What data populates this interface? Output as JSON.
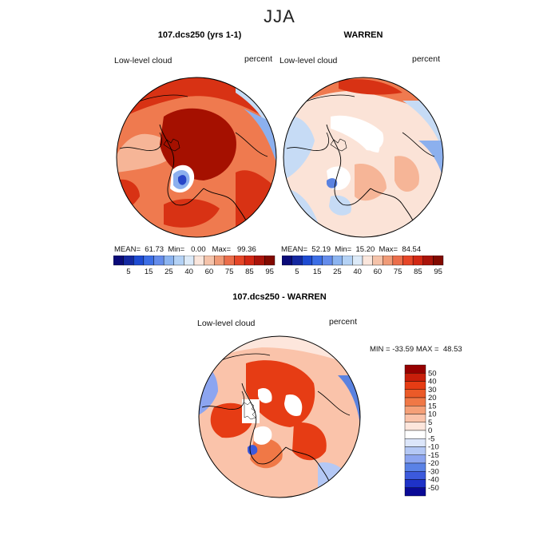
{
  "season": "JJA",
  "panels": {
    "model": {
      "title": "107.dcs250 (yrs 1-1)",
      "field": "Low-level cloud",
      "units": "percent",
      "stats": {
        "mean_label": "MEAN=",
        "mean": "61.73",
        "min_label": "Min=",
        "min": "0.00",
        "max_label": "Max=",
        "max": "99.36"
      }
    },
    "obs": {
      "title": "WARREN",
      "field": "Low-level cloud",
      "units": "percent",
      "stats": {
        "mean_label": "MEAN=",
        "mean": "52.19",
        "min_label": "Min=",
        "min": "15.20",
        "max_label": "Max=",
        "max": "84.54"
      }
    },
    "diff": {
      "title": "107.dcs250 - WARREN",
      "field": "Low-level cloud",
      "units": "percent",
      "stats": "MIN = -33.59 MAX =  48.53"
    }
  },
  "colorbars": {
    "absolute": {
      "tick_labels": [
        "5",
        "15",
        "25",
        "40",
        "60",
        "75",
        "85",
        "95"
      ],
      "colors": [
        "#0a0a78",
        "#1428a0",
        "#1e4bd2",
        "#3c6ee6",
        "#648ceb",
        "#8cb4f0",
        "#b4d2f5",
        "#dceaf8",
        "#fae6dc",
        "#f5c3aa",
        "#f09b78",
        "#eb6e4b",
        "#e64628",
        "#d22814",
        "#aa140a",
        "#820a00"
      ]
    },
    "difference": {
      "tick_labels": [
        "50",
        "40",
        "30",
        "20",
        "15",
        "10",
        "5",
        "0",
        "-5",
        "-10",
        "-15",
        "-20",
        "-30",
        "-40",
        "-50"
      ],
      "colors": [
        "#960000",
        "#c81e0a",
        "#e63c14",
        "#eb5a28",
        "#f07846",
        "#f5a078",
        "#fac3aa",
        "#fde6dc",
        "#ffffff",
        "#dce6fa",
        "#b4c8f5",
        "#8ca5f0",
        "#5a82e6",
        "#3c5adc",
        "#1e32c8",
        "#0a0a96"
      ]
    }
  },
  "map": {
    "projection": "north polar stereographic",
    "colors": {
      "land_line": "#000000",
      "deep_red": "#a51000",
      "red": "#d83214",
      "orange": "#ef7a4f",
      "peach": "#f6b597",
      "pale": "#fbe3d7",
      "white": "#ffffff",
      "light_blue": "#c6dbf5",
      "blue": "#8cb0ee",
      "mid_blue": "#5a82e0",
      "dark_blue": "#2846c8"
    }
  }
}
